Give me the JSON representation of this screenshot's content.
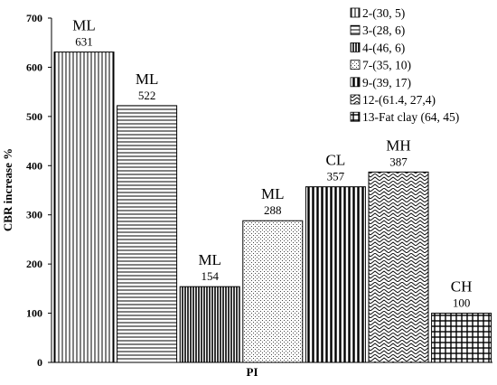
{
  "chart_data": {
    "type": "bar",
    "xlabel": "PI",
    "ylabel": "CBR increase %",
    "ylim": [
      0,
      700
    ],
    "yticks": [
      0,
      100,
      200,
      300,
      400,
      500,
      600,
      700
    ],
    "grid": false,
    "legend_position": "top-right",
    "series": [
      {
        "name": "2-(30, 5)",
        "value": 631,
        "class": "ML",
        "pattern": "vertical-lines"
      },
      {
        "name": "3-(28, 6)",
        "value": 522,
        "class": "ML",
        "pattern": "horizontal-lines"
      },
      {
        "name": "4-(46, 6)",
        "value": 154,
        "class": "ML",
        "pattern": "dense-vertical"
      },
      {
        "name": "7-(35, 10)",
        "value": 288,
        "class": "ML",
        "pattern": "dots"
      },
      {
        "name": "9-(39, 17)",
        "value": 357,
        "class": "CL",
        "pattern": "wide-vertical"
      },
      {
        "name": "12-(61.4, 27,4)",
        "value": 387,
        "class": "MH",
        "pattern": "zigzag"
      },
      {
        "name": "13-Fat clay (64, 45)",
        "value": 100,
        "class": "CH",
        "pattern": "grid"
      }
    ]
  }
}
